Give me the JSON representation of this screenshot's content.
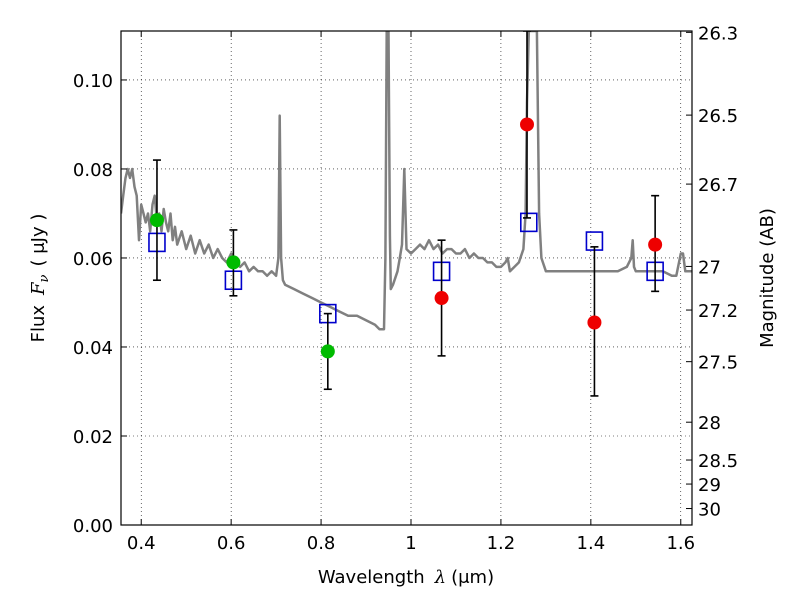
{
  "chart_data": {
    "type": "scatter",
    "title": "",
    "xlabel": "Wavelength",
    "xlabel_symbol": "λ",
    "xlabel_unit": "(μm)",
    "ylabel": "Flux",
    "ylabel_symbol": "F",
    "ylabel_subscript": "ν",
    "ylabel_unit": "( μJy )",
    "y2label": "Magnitude (AB)",
    "xlim": [
      0.355,
      1.625
    ],
    "ylim": [
      0.0,
      0.111
    ],
    "x_ticks": [
      0.4,
      0.6,
      0.8,
      1.0,
      1.2,
      1.4,
      1.6
    ],
    "x_tick_labels": [
      "0.4",
      "0.6",
      "0.8",
      "1",
      "1.2",
      "1.4",
      "1.6"
    ],
    "y_ticks": [
      0.0,
      0.02,
      0.04,
      0.06,
      0.08,
      0.1
    ],
    "y_tick_labels": [
      "0.00",
      "0.02",
      "0.04",
      "0.06",
      "0.08",
      "0.10"
    ],
    "y2_ticks": [
      {
        "label": "26.3",
        "flux": 0.1107
      },
      {
        "label": "26.5",
        "flux": 0.0921
      },
      {
        "label": "26.7",
        "flux": 0.0766
      },
      {
        "label": "27",
        "flux": 0.0581
      },
      {
        "label": "27.2",
        "flux": 0.0483
      },
      {
        "label": "27.5",
        "flux": 0.0367
      },
      {
        "label": "28",
        "flux": 0.0231
      },
      {
        "label": "28.5",
        "flux": 0.0146
      },
      {
        "label": "29",
        "flux": 0.0092
      },
      {
        "label": "30",
        "flux": 0.0037
      }
    ],
    "grid": true,
    "series": [
      {
        "style": "model-spectrum",
        "color": "#808080",
        "points": [
          [
            0.355,
            0.07
          ],
          [
            0.36,
            0.074
          ],
          [
            0.365,
            0.078
          ],
          [
            0.37,
            0.08
          ],
          [
            0.375,
            0.078
          ],
          [
            0.38,
            0.08
          ],
          [
            0.385,
            0.076
          ],
          [
            0.39,
            0.074
          ],
          [
            0.395,
            0.064
          ],
          [
            0.4,
            0.072
          ],
          [
            0.405,
            0.07
          ],
          [
            0.41,
            0.068
          ],
          [
            0.415,
            0.07
          ],
          [
            0.42,
            0.066
          ],
          [
            0.425,
            0.072
          ],
          [
            0.43,
            0.074
          ],
          [
            0.435,
            0.068
          ],
          [
            0.44,
            0.07
          ],
          [
            0.445,
            0.066
          ],
          [
            0.45,
            0.071
          ],
          [
            0.455,
            0.068
          ],
          [
            0.46,
            0.066
          ],
          [
            0.465,
            0.07
          ],
          [
            0.47,
            0.064
          ],
          [
            0.475,
            0.067
          ],
          [
            0.48,
            0.063
          ],
          [
            0.49,
            0.066
          ],
          [
            0.5,
            0.062
          ],
          [
            0.51,
            0.065
          ],
          [
            0.52,
            0.061
          ],
          [
            0.53,
            0.064
          ],
          [
            0.54,
            0.061
          ],
          [
            0.55,
            0.063
          ],
          [
            0.56,
            0.06
          ],
          [
            0.57,
            0.062
          ],
          [
            0.58,
            0.06
          ],
          [
            0.59,
            0.059
          ],
          [
            0.6,
            0.061
          ],
          [
            0.61,
            0.059
          ],
          [
            0.62,
            0.058
          ],
          [
            0.63,
            0.059
          ],
          [
            0.64,
            0.057
          ],
          [
            0.65,
            0.058
          ],
          [
            0.66,
            0.057
          ],
          [
            0.67,
            0.057
          ],
          [
            0.68,
            0.056
          ],
          [
            0.69,
            0.057
          ],
          [
            0.7,
            0.056
          ],
          [
            0.705,
            0.06
          ],
          [
            0.708,
            0.092
          ],
          [
            0.711,
            0.06
          ],
          [
            0.715,
            0.055
          ],
          [
            0.72,
            0.054
          ],
          [
            0.74,
            0.053
          ],
          [
            0.76,
            0.052
          ],
          [
            0.78,
            0.051
          ],
          [
            0.8,
            0.05
          ],
          [
            0.82,
            0.049
          ],
          [
            0.84,
            0.048
          ],
          [
            0.86,
            0.047
          ],
          [
            0.88,
            0.047
          ],
          [
            0.9,
            0.046
          ],
          [
            0.92,
            0.045
          ],
          [
            0.93,
            0.044
          ],
          [
            0.94,
            0.044
          ],
          [
            0.943,
            0.06
          ],
          [
            0.946,
            0.111
          ],
          [
            0.95,
            0.111
          ],
          [
            0.953,
            0.065
          ],
          [
            0.955,
            0.053
          ],
          [
            0.96,
            0.054
          ],
          [
            0.97,
            0.057
          ],
          [
            0.975,
            0.06
          ],
          [
            0.98,
            0.063
          ],
          [
            0.985,
            0.08
          ],
          [
            0.99,
            0.062
          ],
          [
            1.0,
            0.061
          ],
          [
            1.01,
            0.062
          ],
          [
            1.02,
            0.063
          ],
          [
            1.03,
            0.062
          ],
          [
            1.04,
            0.064
          ],
          [
            1.05,
            0.062
          ],
          [
            1.06,
            0.063
          ],
          [
            1.07,
            0.061
          ],
          [
            1.08,
            0.062
          ],
          [
            1.09,
            0.062
          ],
          [
            1.1,
            0.061
          ],
          [
            1.11,
            0.061
          ],
          [
            1.12,
            0.062
          ],
          [
            1.13,
            0.06
          ],
          [
            1.14,
            0.061
          ],
          [
            1.15,
            0.06
          ],
          [
            1.16,
            0.06
          ],
          [
            1.17,
            0.059
          ],
          [
            1.18,
            0.059
          ],
          [
            1.19,
            0.058
          ],
          [
            1.2,
            0.058
          ],
          [
            1.21,
            0.059
          ],
          [
            1.215,
            0.06
          ],
          [
            1.22,
            0.057
          ],
          [
            1.23,
            0.058
          ],
          [
            1.24,
            0.059
          ],
          [
            1.25,
            0.062
          ],
          [
            1.255,
            0.07
          ],
          [
            1.258,
            0.095
          ],
          [
            1.262,
            0.111
          ],
          [
            1.27,
            0.111
          ],
          [
            1.28,
            0.111
          ],
          [
            1.285,
            0.07
          ],
          [
            1.29,
            0.06
          ],
          [
            1.3,
            0.057
          ],
          [
            1.32,
            0.057
          ],
          [
            1.34,
            0.057
          ],
          [
            1.36,
            0.057
          ],
          [
            1.38,
            0.057
          ],
          [
            1.4,
            0.057
          ],
          [
            1.42,
            0.057
          ],
          [
            1.44,
            0.057
          ],
          [
            1.46,
            0.057
          ],
          [
            1.48,
            0.058
          ],
          [
            1.49,
            0.06
          ],
          [
            1.493,
            0.064
          ],
          [
            1.496,
            0.058
          ],
          [
            1.5,
            0.057
          ],
          [
            1.52,
            0.057
          ],
          [
            1.54,
            0.057
          ],
          [
            1.56,
            0.057
          ],
          [
            1.58,
            0.056
          ],
          [
            1.59,
            0.056
          ],
          [
            1.6,
            0.061
          ],
          [
            1.605,
            0.061
          ],
          [
            1.61,
            0.057
          ],
          [
            1.625,
            0.057
          ]
        ]
      },
      {
        "style": "model-photometry",
        "marker": "open-square",
        "color": "#0000cc",
        "points": [
          [
            0.435,
            0.0635
          ],
          [
            0.605,
            0.055
          ],
          [
            0.815,
            0.0475
          ],
          [
            1.068,
            0.057
          ],
          [
            1.262,
            0.068
          ],
          [
            1.408,
            0.0638
          ],
          [
            1.543,
            0.057
          ]
        ]
      },
      {
        "style": "observed-optical",
        "marker": "filled-circle",
        "color": "#00bb00",
        "points": [
          [
            0.435,
            0.0685
          ],
          [
            0.605,
            0.059
          ],
          [
            0.815,
            0.039
          ]
        ],
        "errors": [
          [
            0.055,
            0.082
          ],
          [
            0.0515,
            0.0663
          ],
          [
            0.0305,
            0.0475
          ]
        ]
      },
      {
        "style": "observed-infrared",
        "marker": "filled-circle",
        "color": "#ee0000",
        "points": [
          [
            1.068,
            0.051
          ],
          [
            1.258,
            0.09
          ],
          [
            1.408,
            0.0455
          ],
          [
            1.543,
            0.063
          ]
        ],
        "errors": [
          [
            0.038,
            0.064
          ],
          [
            0.069,
            0.111
          ],
          [
            0.029,
            0.0625
          ],
          [
            0.0525,
            0.074
          ]
        ]
      }
    ]
  }
}
